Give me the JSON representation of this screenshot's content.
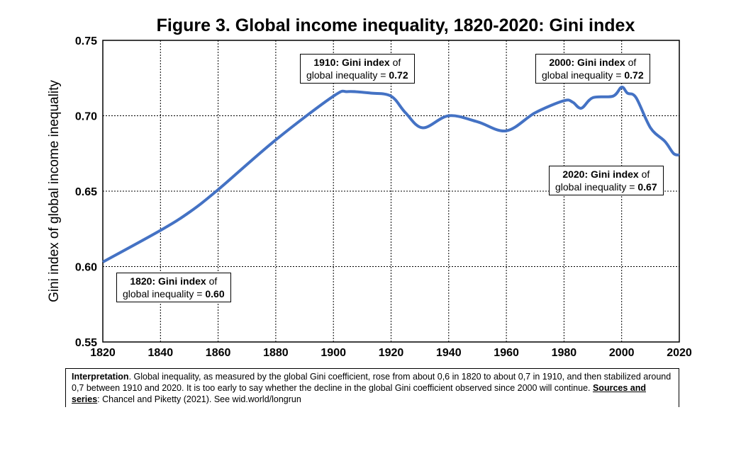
{
  "chart_data": {
    "type": "line",
    "title": "Figure 3. Global income inequality, 1820-2020: Gini index",
    "xlabel": "",
    "ylabel": "Gini index of global income inequality",
    "xlim": [
      1820,
      2020
    ],
    "ylim": [
      0.55,
      0.75
    ],
    "xticks": [
      "1820",
      "1840",
      "1860",
      "1880",
      "1900",
      "1920",
      "1940",
      "1960",
      "1980",
      "2000",
      "2020"
    ],
    "yticks": [
      "0.55",
      "0.60",
      "0.65",
      "0.70",
      "0.75"
    ],
    "grid": true,
    "color": "#4472C4",
    "x": [
      1820,
      1840,
      1850,
      1860,
      1880,
      1900,
      1905,
      1913,
      1920,
      1925,
      1931,
      1940,
      1950,
      1960,
      1970,
      1980,
      1983,
      1986,
      1990,
      1997,
      2000,
      2002,
      2005,
      2010,
      2015,
      2018,
      2020
    ],
    "y": [
      0.603,
      0.624,
      0.636,
      0.651,
      0.684,
      0.713,
      0.716,
      0.715,
      0.713,
      0.702,
      0.692,
      0.7,
      0.696,
      0.69,
      0.702,
      0.71,
      0.709,
      0.705,
      0.712,
      0.713,
      0.719,
      0.715,
      0.712,
      0.692,
      0.683,
      0.675,
      0.674
    ],
    "annotations": [
      {
        "year": "1820",
        "label": "Gini index",
        "mid": " of",
        "line2": "global inequality = ",
        "value": "0.60"
      },
      {
        "year": "1910",
        "label": "Gini index",
        "mid": " of",
        "line2": "global inequality = ",
        "value": "0.72"
      },
      {
        "year": "2000",
        "label": "Gini index",
        "mid": " of",
        "line2": "global inequality = ",
        "value": "0.72"
      },
      {
        "year": "2020",
        "label": "Gini index",
        "mid": " of",
        "line2": "global inequality = ",
        "value": "0.67"
      }
    ]
  },
  "note": {
    "bold1": "Interpretation",
    "text1": ". Global inequality, as measured by the global Gini coefficient, rose from about 0,6 in 1820 to about 0,7 in 1910, and then stabilized around 0,7 between 1910 and 2020. It is too early to say whether the decline in the global Gini coefficient observed since 2000 will continue. ",
    "bold2": "Sources and series",
    "text2": ": Chancel and Piketty (2021). See wid.world/longrun"
  }
}
